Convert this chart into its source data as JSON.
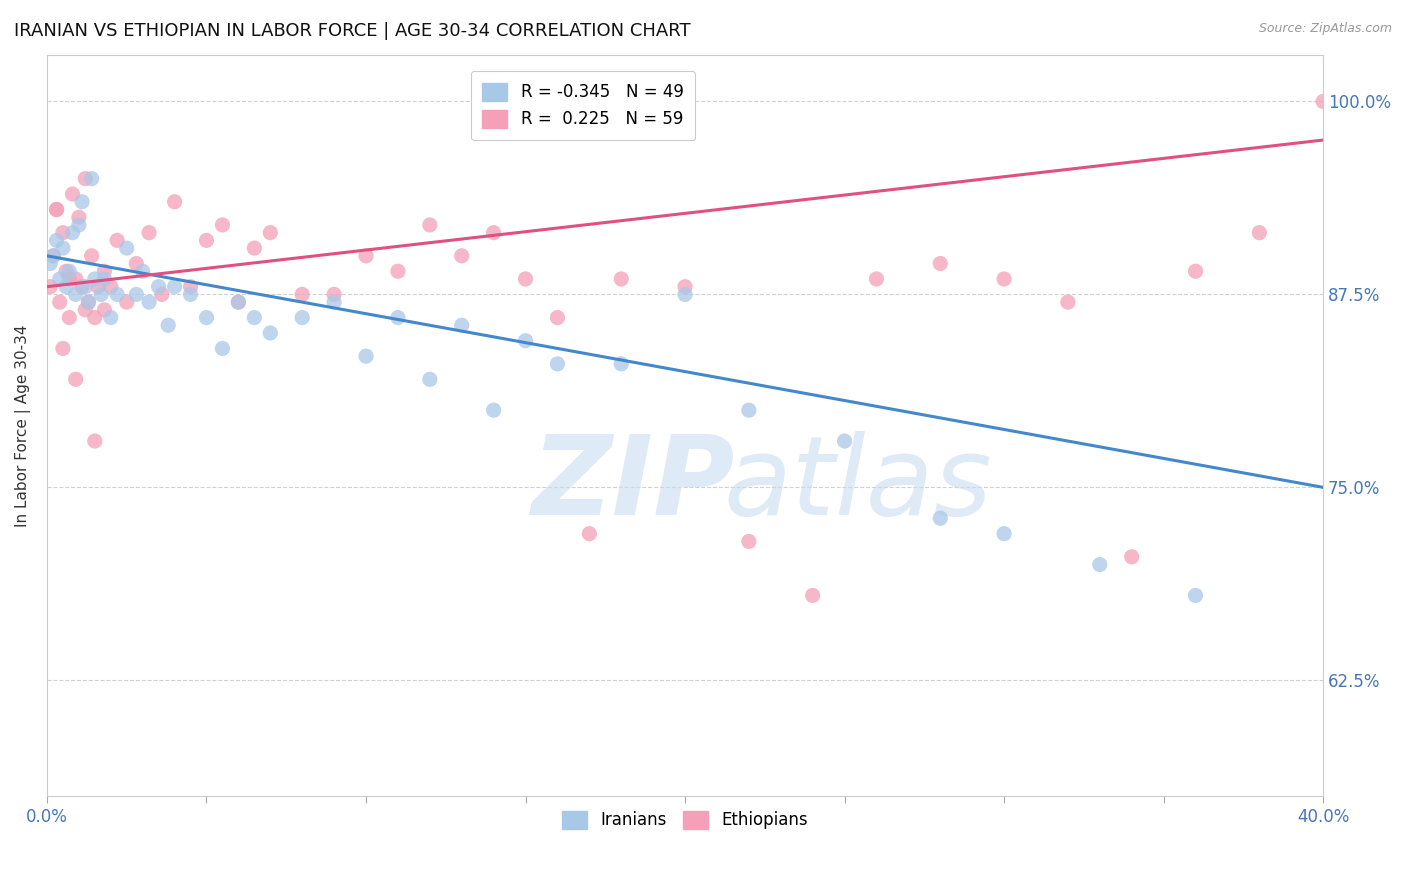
{
  "title": "IRANIAN VS ETHIOPIAN IN LABOR FORCE | AGE 30-34 CORRELATION CHART",
  "source": "Source: ZipAtlas.com",
  "ylabel": "In Labor Force | Age 30-34",
  "xlim": [
    0.0,
    0.4
  ],
  "ylim": [
    0.55,
    1.03
  ],
  "xticks": [
    0.0,
    0.05,
    0.1,
    0.15,
    0.2,
    0.25,
    0.3,
    0.35,
    0.4
  ],
  "yticks": [
    0.625,
    0.75,
    0.875,
    1.0
  ],
  "ytick_right_labels": [
    "62.5%",
    "75.0%",
    "87.5%",
    "100.0%"
  ],
  "blue_color": "#a8c8e8",
  "pink_color": "#f4a0b8",
  "blue_line_color": "#4488cc",
  "pink_line_color": "#e05080",
  "watermark_color": "#c8ddf0",
  "background_color": "#ffffff",
  "grid_color": "#cccccc",
  "blue_line_x0": 0.0,
  "blue_line_y0": 0.9,
  "blue_line_x1": 0.4,
  "blue_line_y1": 0.75,
  "pink_line_x0": 0.0,
  "pink_line_y0": 0.88,
  "pink_line_x1": 0.4,
  "pink_line_y1": 0.975,
  "blue_scatter_x": [
    0.001,
    0.002,
    0.003,
    0.004,
    0.005,
    0.006,
    0.007,
    0.008,
    0.009,
    0.01,
    0.011,
    0.012,
    0.013,
    0.014,
    0.015,
    0.017,
    0.018,
    0.02,
    0.022,
    0.025,
    0.028,
    0.03,
    0.032,
    0.035,
    0.038,
    0.04,
    0.045,
    0.05,
    0.055,
    0.06,
    0.065,
    0.07,
    0.08,
    0.09,
    0.1,
    0.11,
    0.12,
    0.13,
    0.14,
    0.15,
    0.16,
    0.18,
    0.2,
    0.22,
    0.25,
    0.28,
    0.3,
    0.33,
    0.36
  ],
  "blue_scatter_y": [
    0.895,
    0.9,
    0.91,
    0.885,
    0.905,
    0.88,
    0.89,
    0.915,
    0.875,
    0.92,
    0.935,
    0.88,
    0.87,
    0.95,
    0.885,
    0.875,
    0.885,
    0.86,
    0.875,
    0.905,
    0.875,
    0.89,
    0.87,
    0.88,
    0.855,
    0.88,
    0.875,
    0.86,
    0.84,
    0.87,
    0.86,
    0.85,
    0.86,
    0.87,
    0.835,
    0.86,
    0.82,
    0.855,
    0.8,
    0.845,
    0.83,
    0.83,
    0.875,
    0.8,
    0.78,
    0.73,
    0.72,
    0.7,
    0.68
  ],
  "pink_scatter_x": [
    0.001,
    0.002,
    0.003,
    0.004,
    0.005,
    0.006,
    0.007,
    0.008,
    0.009,
    0.01,
    0.011,
    0.012,
    0.013,
    0.014,
    0.015,
    0.016,
    0.018,
    0.02,
    0.022,
    0.025,
    0.028,
    0.032,
    0.036,
    0.04,
    0.045,
    0.05,
    0.055,
    0.06,
    0.065,
    0.07,
    0.08,
    0.09,
    0.1,
    0.11,
    0.12,
    0.13,
    0.14,
    0.15,
    0.16,
    0.17,
    0.18,
    0.2,
    0.22,
    0.24,
    0.26,
    0.28,
    0.3,
    0.32,
    0.34,
    0.36,
    0.38,
    0.4,
    0.003,
    0.005,
    0.007,
    0.009,
    0.012,
    0.015,
    0.018
  ],
  "pink_scatter_y": [
    0.88,
    0.9,
    0.93,
    0.87,
    0.915,
    0.89,
    0.86,
    0.94,
    0.885,
    0.925,
    0.88,
    0.95,
    0.87,
    0.9,
    0.86,
    0.88,
    0.865,
    0.88,
    0.91,
    0.87,
    0.895,
    0.915,
    0.875,
    0.935,
    0.88,
    0.91,
    0.92,
    0.87,
    0.905,
    0.915,
    0.875,
    0.875,
    0.9,
    0.89,
    0.92,
    0.9,
    0.915,
    0.885,
    0.86,
    0.72,
    0.885,
    0.88,
    0.715,
    0.68,
    0.885,
    0.895,
    0.885,
    0.87,
    0.705,
    0.89,
    0.915,
    1.0,
    0.93,
    0.84,
    0.885,
    0.82,
    0.865,
    0.78,
    0.89
  ]
}
